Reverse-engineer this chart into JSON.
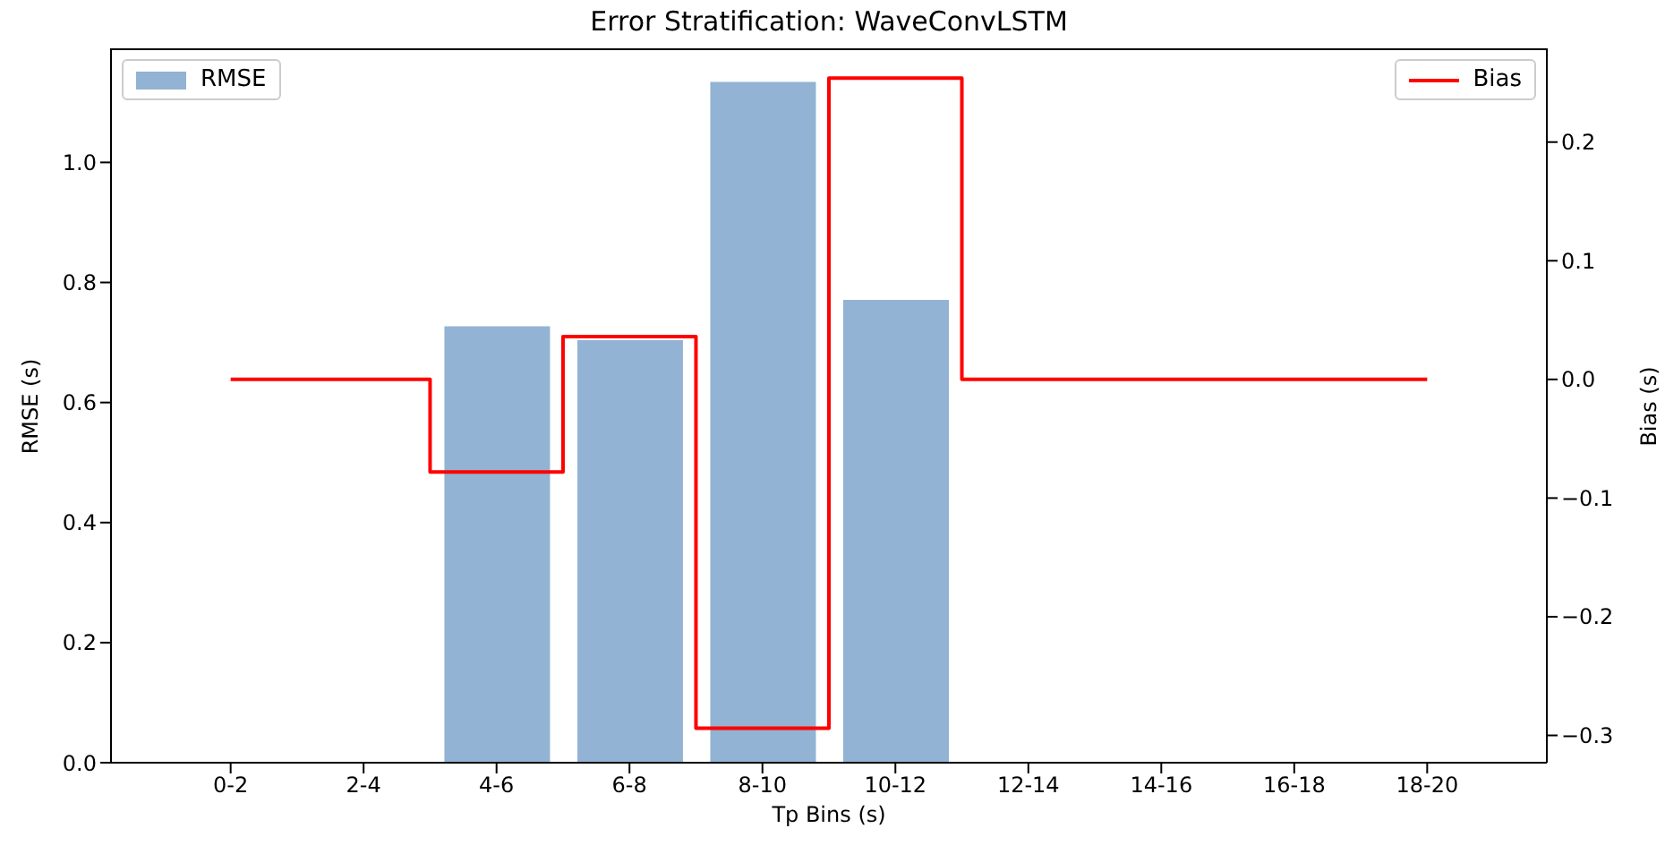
{
  "chart_data": {
    "type": "bar",
    "title": "Error Stratification: WaveConvLSTM",
    "xlabel": "Tp Bins (s)",
    "ylabel": "RMSE (s)",
    "y2label": "Bias (s)",
    "categories": [
      "0-2",
      "2-4",
      "4-6",
      "6-8",
      "8-10",
      "10-12",
      "12-14",
      "14-16",
      "16-18",
      "18-20"
    ],
    "series": [
      {
        "name": "RMSE",
        "color": "#92b3d3",
        "values": [
          null,
          null,
          0.727,
          0.704,
          1.134,
          0.771,
          null,
          null,
          null,
          null
        ]
      },
      {
        "name": "Bias",
        "type": "step",
        "axis": "y2",
        "color": "#ff0000",
        "values": [
          0,
          0,
          -0.078,
          0.036,
          -0.294,
          0.254,
          0,
          0,
          0,
          0
        ]
      }
    ],
    "ylim": [
      0,
      1.19
    ],
    "yticks": [
      {
        "value": 0,
        "label": "0.0"
      },
      {
        "value": 0.2,
        "label": "0.2"
      },
      {
        "value": 0.4,
        "label": "0.4"
      },
      {
        "value": 0.6,
        "label": "0.6"
      },
      {
        "value": 0.8,
        "label": "0.8"
      },
      {
        "value": 1.0,
        "label": "1.0"
      }
    ],
    "y2lim": [
      -0.323,
      0.279
    ],
    "y2ticks": [
      {
        "value": -0.3,
        "label": "−0.3"
      },
      {
        "value": -0.2,
        "label": "−0.2"
      },
      {
        "value": -0.1,
        "label": "−0.1"
      },
      {
        "value": 0,
        "label": "0.0"
      },
      {
        "value": 0.1,
        "label": "0.1"
      },
      {
        "value": 0.2,
        "label": "0.2"
      }
    ],
    "grid": false,
    "legend": "top"
  }
}
